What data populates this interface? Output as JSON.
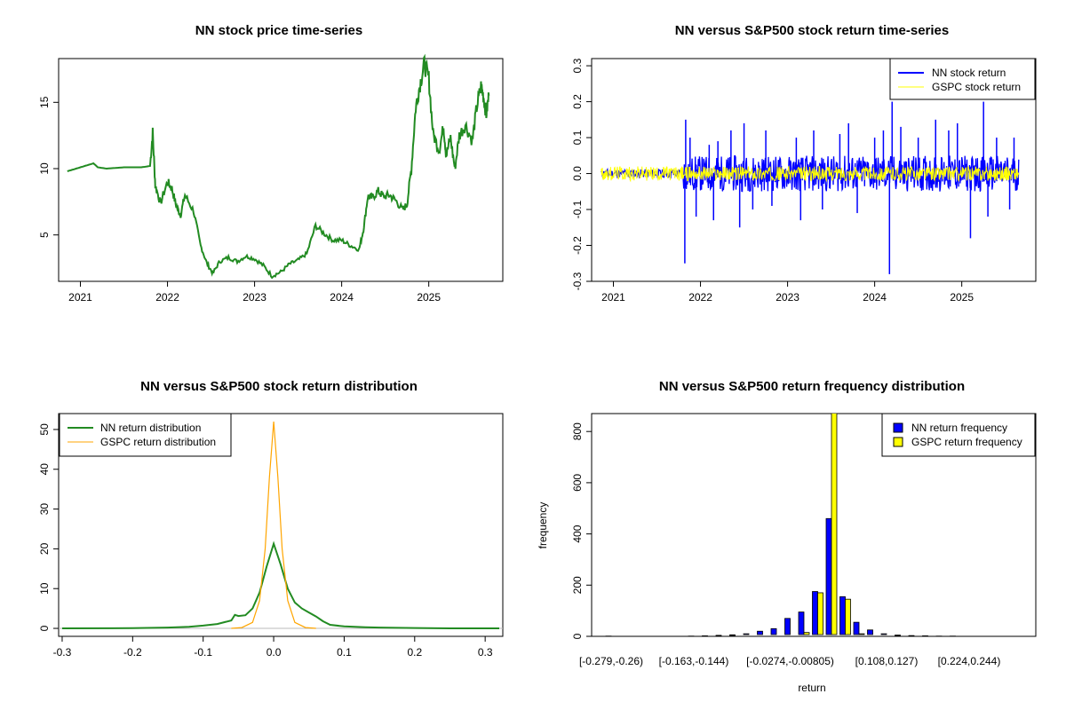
{
  "colors": {
    "nn_price": "#228b22",
    "nn_return": "#0000ff",
    "gspc_return": "#ffff00",
    "nn_density": "#228b22",
    "gspc_density": "#ffa500",
    "hist_nn": "#0000ff",
    "hist_gspc": "#ffff00"
  },
  "chart_data": [
    {
      "type": "line",
      "title": "NN stock price time-series",
      "xlabel": "",
      "ylabel": "",
      "xlim": [
        2020.75,
        2025.85
      ],
      "ylim": [
        1.5,
        18.3
      ],
      "x_ticks": [
        "2021",
        "2022",
        "2023",
        "2024",
        "2025"
      ],
      "y_ticks": [
        "5",
        "10",
        "15"
      ],
      "series": [
        {
          "points": [
            [
              2020.85,
              9.8
            ],
            [
              2020.95,
              10.0
            ],
            [
              2021.05,
              10.2
            ],
            [
              2021.15,
              10.4
            ],
            [
              2021.2,
              10.1
            ],
            [
              2021.3,
              10.0
            ],
            [
              2021.5,
              10.1
            ],
            [
              2021.7,
              10.1
            ],
            [
              2021.8,
              10.2
            ],
            [
              2021.83,
              12.7
            ],
            [
              2021.86,
              8.7
            ],
            [
              2021.92,
              7.4
            ],
            [
              2022.0,
              9.0
            ],
            [
              2022.05,
              8.5
            ],
            [
              2022.1,
              7.2
            ],
            [
              2022.15,
              6.5
            ],
            [
              2022.2,
              8.0
            ],
            [
              2022.3,
              6.8
            ],
            [
              2022.38,
              4.2
            ],
            [
              2022.45,
              2.9
            ],
            [
              2022.52,
              2.1
            ],
            [
              2022.6,
              3.0
            ],
            [
              2022.7,
              3.3
            ],
            [
              2022.8,
              3.0
            ],
            [
              2022.9,
              3.4
            ],
            [
              2023.0,
              3.2
            ],
            [
              2023.1,
              2.7
            ],
            [
              2023.2,
              1.9
            ],
            [
              2023.3,
              2.2
            ],
            [
              2023.4,
              2.8
            ],
            [
              2023.5,
              3.1
            ],
            [
              2023.6,
              3.6
            ],
            [
              2023.7,
              5.7
            ],
            [
              2023.8,
              5.1
            ],
            [
              2023.9,
              4.6
            ],
            [
              2024.0,
              4.6
            ],
            [
              2024.1,
              4.2
            ],
            [
              2024.2,
              3.9
            ],
            [
              2024.25,
              5.4
            ],
            [
              2024.3,
              7.9
            ],
            [
              2024.35,
              7.8
            ],
            [
              2024.42,
              8.3
            ],
            [
              2024.48,
              7.9
            ],
            [
              2024.55,
              8.0
            ],
            [
              2024.62,
              7.6
            ],
            [
              2024.7,
              6.9
            ],
            [
              2024.75,
              7.3
            ],
            [
              2024.8,
              10.0
            ],
            [
              2024.85,
              14.6
            ],
            [
              2024.9,
              16.4
            ],
            [
              2024.95,
              17.9
            ],
            [
              2025.0,
              16.8
            ],
            [
              2025.05,
              12.6
            ],
            [
              2025.12,
              11.4
            ],
            [
              2025.17,
              13.2
            ],
            [
              2025.2,
              11.0
            ],
            [
              2025.25,
              12.3
            ],
            [
              2025.3,
              10.0
            ],
            [
              2025.35,
              12.5
            ],
            [
              2025.42,
              13.3
            ],
            [
              2025.5,
              12.1
            ],
            [
              2025.55,
              14.6
            ],
            [
              2025.6,
              16.2
            ],
            [
              2025.63,
              15.4
            ],
            [
              2025.66,
              14.1
            ],
            [
              2025.69,
              15.5
            ]
          ]
        }
      ]
    },
    {
      "type": "line",
      "title": "NN versus S&P500 stock return time-series",
      "xlabel": "",
      "ylabel": "",
      "xlim": [
        2020.75,
        2025.85
      ],
      "ylim": [
        -0.3,
        0.32
      ],
      "x_ticks": [
        "2021",
        "2022",
        "2023",
        "2024",
        "2025"
      ],
      "y_ticks": [
        "-0.3",
        "-0.2",
        "-0.1",
        "0.0",
        "0.1",
        "0.2",
        "0.3"
      ],
      "legend": {
        "position": "top-right"
      },
      "series": [
        {
          "name": "NN stock return",
          "color_key": "nn_return"
        },
        {
          "name": "GSPC stock return",
          "color_key": "gspc_return"
        }
      ],
      "annotations": {
        "nn_spikes": [
          [
            2021.82,
            -0.25
          ],
          [
            2021.83,
            0.15
          ],
          [
            2021.88,
            0.1
          ],
          [
            2021.95,
            -0.12
          ],
          [
            2022.1,
            0.08
          ],
          [
            2022.15,
            -0.13
          ],
          [
            2022.2,
            0.09
          ],
          [
            2022.35,
            0.12
          ],
          [
            2022.45,
            -0.15
          ],
          [
            2022.5,
            0.14
          ],
          [
            2022.6,
            -0.1
          ],
          [
            2022.75,
            0.12
          ],
          [
            2022.82,
            -0.09
          ],
          [
            2023.1,
            0.1
          ],
          [
            2023.15,
            -0.13
          ],
          [
            2023.3,
            0.12
          ],
          [
            2023.4,
            -0.1
          ],
          [
            2023.6,
            0.11
          ],
          [
            2023.7,
            0.14
          ],
          [
            2023.8,
            -0.11
          ],
          [
            2024.0,
            0.1
          ],
          [
            2024.1,
            0.12
          ],
          [
            2024.17,
            -0.28
          ],
          [
            2024.2,
            0.2
          ],
          [
            2024.3,
            0.13
          ],
          [
            2024.5,
            0.1
          ],
          [
            2024.7,
            0.15
          ],
          [
            2024.85,
            0.12
          ],
          [
            2024.95,
            0.14
          ],
          [
            2025.1,
            -0.18
          ],
          [
            2025.25,
            0.2
          ],
          [
            2025.3,
            -0.12
          ],
          [
            2025.4,
            0.1
          ],
          [
            2025.55,
            -0.1
          ],
          [
            2025.6,
            0.1
          ]
        ]
      }
    },
    {
      "type": "line",
      "title": "NN versus S&P500 stock return distribution",
      "xlabel": "",
      "ylabel": "",
      "xlim": [
        -0.305,
        0.325
      ],
      "ylim": [
        -2,
        54
      ],
      "x_ticks": [
        "-0.3",
        "-0.2",
        "-0.1",
        "0.0",
        "0.1",
        "0.2",
        "0.3"
      ],
      "y_ticks": [
        "0",
        "10",
        "20",
        "30",
        "40",
        "50"
      ],
      "legend": {
        "position": "top-left"
      },
      "series": [
        {
          "name": "NN return distribution",
          "color_key": "nn_density",
          "points": [
            [
              -0.3,
              0.0
            ],
            [
              -0.2,
              0.05
            ],
            [
              -0.15,
              0.2
            ],
            [
              -0.12,
              0.4
            ],
            [
              -0.1,
              0.7
            ],
            [
              -0.08,
              1.1
            ],
            [
              -0.06,
              2.0
            ],
            [
              -0.055,
              3.4
            ],
            [
              -0.05,
              3.1
            ],
            [
              -0.04,
              3.3
            ],
            [
              -0.03,
              5.0
            ],
            [
              -0.02,
              9.0
            ],
            [
              -0.01,
              15.5
            ],
            [
              0.0,
              21.3
            ],
            [
              0.01,
              16.0
            ],
            [
              0.02,
              10.0
            ],
            [
              0.03,
              6.5
            ],
            [
              0.04,
              5.0
            ],
            [
              0.05,
              4.0
            ],
            [
              0.06,
              3.0
            ],
            [
              0.07,
              1.8
            ],
            [
              0.08,
              0.9
            ],
            [
              0.1,
              0.5
            ],
            [
              0.13,
              0.3
            ],
            [
              0.15,
              0.2
            ],
            [
              0.2,
              0.1
            ],
            [
              0.25,
              0.0
            ],
            [
              0.32,
              0.0
            ]
          ]
        },
        {
          "name": "GSPC return distribution",
          "color_key": "gspc_density",
          "points": [
            [
              -0.06,
              0.0
            ],
            [
              -0.045,
              0.2
            ],
            [
              -0.03,
              1.5
            ],
            [
              -0.02,
              7.0
            ],
            [
              -0.012,
              20.0
            ],
            [
              -0.006,
              38.0
            ],
            [
              0.0,
              52.0
            ],
            [
              0.006,
              38.0
            ],
            [
              0.012,
              20.0
            ],
            [
              0.02,
              7.0
            ],
            [
              0.03,
              1.5
            ],
            [
              0.045,
              0.2
            ],
            [
              0.06,
              0.0
            ]
          ]
        }
      ]
    },
    {
      "type": "bar",
      "title": "NN versus S&P500 return frequency distribution",
      "xlabel": "return",
      "ylabel": "frequency",
      "ylim": [
        0,
        870
      ],
      "y_ticks": [
        "0",
        "200",
        "400",
        "600",
        "800"
      ],
      "x_tick_labels": [
        "[-0.279,-0.26)",
        "[-0.163,-0.144)",
        "[-0.0274,-0.00805)",
        "[0.108,0.127)",
        "[0.224,0.244)"
      ],
      "legend": {
        "position": "top-right"
      },
      "series": [
        {
          "name": "NN return frequency",
          "color_key": "hist_nn",
          "values": [
            1,
            0,
            0,
            0,
            0,
            0,
            1,
            2,
            4,
            6,
            10,
            20,
            30,
            70,
            95,
            175,
            460,
            155,
            55,
            25,
            10,
            5,
            3,
            2,
            1,
            1,
            0,
            0,
            0,
            0,
            0
          ]
        },
        {
          "name": "GSPC return frequency",
          "color_key": "hist_gspc",
          "values": [
            0,
            0,
            0,
            0,
            0,
            0,
            0,
            0,
            0,
            0,
            0,
            0,
            0,
            0,
            15,
            170,
            880,
            145,
            10,
            0,
            0,
            0,
            0,
            0,
            0,
            0,
            0,
            0,
            0,
            0,
            0
          ]
        }
      ]
    }
  ]
}
